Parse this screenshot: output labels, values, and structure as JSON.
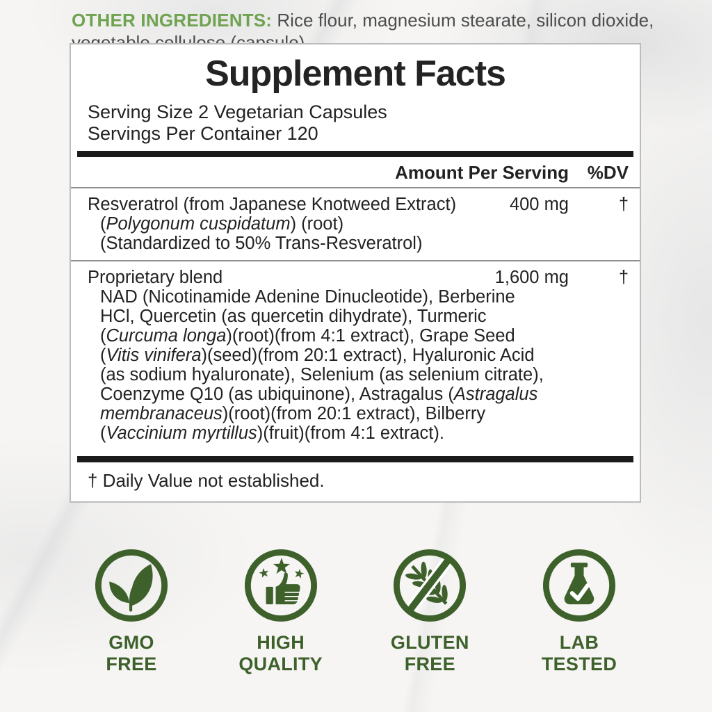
{
  "panel": {
    "title": "Supplement Facts",
    "serving_size": "Serving Size 2 Vegetarian Capsules",
    "servings_per_container": "Servings Per Container 120",
    "col_amount": "Amount Per Serving",
    "col_dv": "%DV",
    "rows": [
      {
        "name": [
          {
            "t": "Resveratrol (from Japanese Knotweed Extract)"
          }
        ],
        "amount": "400 mg",
        "dv": "†",
        "sublines": [
          [
            {
              "t": "("
            },
            {
              "t": "Polygonum cuspidatum",
              "i": true
            },
            {
              "t": ") (root)"
            }
          ],
          [
            {
              "t": "(Standardized to 50% Trans-Resveratrol)"
            }
          ]
        ]
      },
      {
        "name": [
          {
            "t": "Proprietary blend"
          }
        ],
        "amount": "1,600 mg",
        "dv": "†",
        "sublines": [
          [
            {
              "t": "NAD (Nicotinamide Adenine Dinucleotide), Berberine"
            }
          ],
          [
            {
              "t": "HCl, Quercetin (as quercetin dihydrate), Turmeric"
            }
          ],
          [
            {
              "t": "("
            },
            {
              "t": "Curcuma longa",
              "i": true
            },
            {
              "t": ")(root)(from 4:1 extract), Grape Seed"
            }
          ],
          [
            {
              "t": "("
            },
            {
              "t": "Vitis vinifera",
              "i": true
            },
            {
              "t": ")(seed)(from 20:1 extract), Hyaluronic Acid"
            }
          ],
          [
            {
              "t": "(as sodium hyaluronate), Selenium (as selenium citrate),"
            }
          ],
          [
            {
              "t": "Coenzyme Q10 (as ubiquinone), Astragalus ("
            },
            {
              "t": "Astragalus",
              "i": true
            }
          ],
          [
            {
              "t": "membranaceus",
              "i": true
            },
            {
              "t": ")(root)(from 20:1 extract), Bilberry"
            }
          ],
          [
            {
              "t": "("
            },
            {
              "t": "Vaccinium myrtillus",
              "i": true
            },
            {
              "t": ")(fruit)(from 4:1 extract)."
            }
          ]
        ]
      }
    ],
    "footnote": "† Daily Value not established."
  },
  "other_ingredients": {
    "label": "OTHER INGREDIENTS:",
    "line1": "Rice flour, magnesium stearate, silicon dioxide,",
    "line2": "vegetable cellulose (capsule)."
  },
  "badges": [
    {
      "icon": "gmo-free-icon",
      "line1": "GMO",
      "line2": "FREE"
    },
    {
      "icon": "high-quality-icon",
      "line1": "HIGH",
      "line2": "QUALITY"
    },
    {
      "icon": "gluten-free-icon",
      "line1": "GLUTEN",
      "line2": "FREE"
    },
    {
      "icon": "lab-tested-icon",
      "line1": "LAB",
      "line2": "TESTED"
    }
  ],
  "colors": {
    "badge_green": "#3e612c",
    "label_green": "#6fa350",
    "panel_text": "#222222",
    "panel_border": "#bcbcbc",
    "thick_bar": "#1b1b1b"
  }
}
